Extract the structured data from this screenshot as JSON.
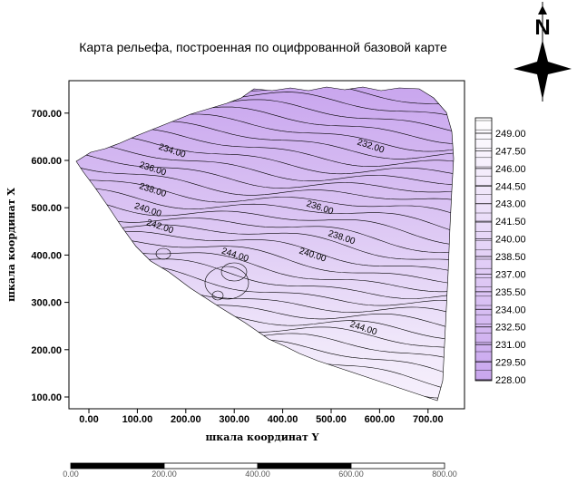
{
  "map": {
    "title": "Карта рельефа, построенная по оцифрованной базовой карте",
    "north_label": "N",
    "x_axis_label": "шкала координат Y",
    "y_axis_label": "шкала координат X",
    "colors": {
      "low": "#c9a6ee",
      "high": "#f6f0fc",
      "contour": "#000000",
      "frame": "#000000"
    }
  },
  "chart_data": {
    "type": "contour",
    "title": "Карта рельефа, построенная по оцифрованной базовой карте",
    "xlabel": "шкала координат Y",
    "ylabel": "шкала координат X",
    "xlim": [
      -40,
      780
    ],
    "ylim": [
      80,
      770
    ],
    "x_ticks": [
      "0.00",
      "100.00",
      "200.00",
      "300.00",
      "400.00",
      "500.00",
      "600.00",
      "700.00"
    ],
    "y_ticks": [
      "100.00",
      "200.00",
      "300.00",
      "400.00",
      "500.00",
      "600.00",
      "700.00"
    ],
    "x_tick_values": [
      0,
      100,
      200,
      300,
      400,
      500,
      600,
      700
    ],
    "y_tick_values": [
      100,
      200,
      300,
      400,
      500,
      600,
      700
    ],
    "legend_levels": [
      "249.00",
      "247.50",
      "246.00",
      "244.50",
      "243.00",
      "241.50",
      "240.00",
      "238.50",
      "237.00",
      "235.50",
      "234.00",
      "232.50",
      "231.00",
      "229.50",
      "228.00"
    ],
    "contour_labels": [
      {
        "text": "234.00",
        "x": 170,
        "y": 615
      },
      {
        "text": "232.00",
        "x": 580,
        "y": 625
      },
      {
        "text": "236.00",
        "x": 130,
        "y": 577
      },
      {
        "text": "238.00",
        "x": 130,
        "y": 532
      },
      {
        "text": "236.00",
        "x": 475,
        "y": 495
      },
      {
        "text": "240.00",
        "x": 120,
        "y": 490
      },
      {
        "text": "242.00",
        "x": 145,
        "y": 455
      },
      {
        "text": "238.00",
        "x": 520,
        "y": 432
      },
      {
        "text": "244.00",
        "x": 300,
        "y": 395
      },
      {
        "text": "240.00",
        "x": 460,
        "y": 395
      },
      {
        "text": "244.00",
        "x": 565,
        "y": 240
      }
    ]
  },
  "scale_bar": {
    "labels": [
      "0.00",
      "200.00",
      "400.00",
      "600.00",
      "800.00"
    ],
    "values": [
      0,
      200,
      400,
      600,
      800
    ]
  }
}
